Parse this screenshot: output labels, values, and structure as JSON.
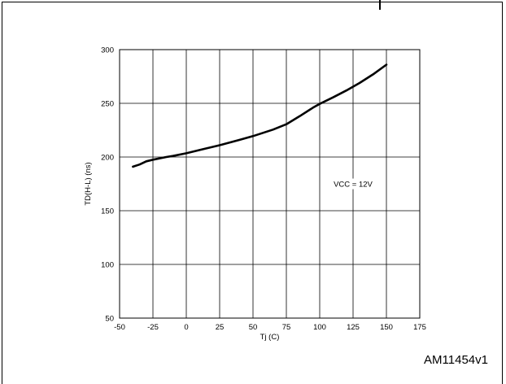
{
  "figure_id": "AM11454v1",
  "chart_data": {
    "type": "line",
    "xlabel": "Tj (C)",
    "ylabel": "TD(H-L) (ns)",
    "xlim": [
      -50,
      175
    ],
    "ylim": [
      50,
      300
    ],
    "xticks": [
      -50,
      -25,
      0,
      25,
      50,
      75,
      100,
      125,
      150,
      175
    ],
    "yticks": [
      50,
      100,
      150,
      200,
      250,
      300
    ],
    "grid": true,
    "annotation": "VCC = 12V",
    "series": [
      {
        "x": [
          -40,
          -35,
          -30,
          -25,
          -15,
          -10,
          0,
          10,
          25,
          40,
          50,
          65,
          75,
          85,
          95,
          100,
          110,
          120,
          130,
          140,
          150
        ],
        "y": [
          191,
          193,
          196,
          197.5,
          200,
          201,
          203.5,
          206.5,
          211,
          216,
          219.5,
          225.5,
          230.5,
          238,
          246,
          249.5,
          255.5,
          262,
          269,
          277,
          286
        ]
      }
    ]
  }
}
